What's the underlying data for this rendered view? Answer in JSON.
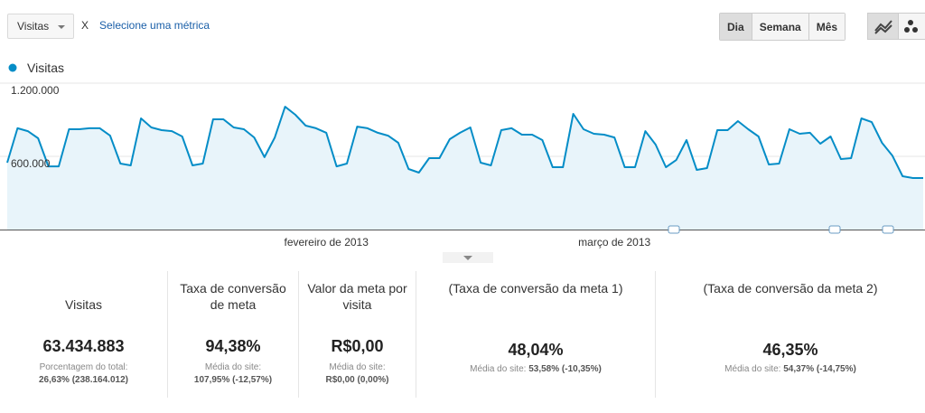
{
  "toolbar": {
    "metric": "Visitas",
    "close": "X",
    "select_metric": "Selecione uma métrica",
    "periods": [
      "Dia",
      "Semana",
      "Mês"
    ]
  },
  "chart_data": {
    "type": "line",
    "categories": [
      null,
      null,
      null,
      null,
      null,
      null,
      null,
      null,
      null,
      null,
      null,
      null,
      null,
      null,
      null,
      null,
      null,
      null,
      null,
      null,
      null,
      null,
      null,
      null,
      null,
      null,
      null,
      null,
      null,
      null,
      null,
      "fevereiro de 2013",
      null,
      null,
      null,
      null,
      null,
      null,
      null,
      null,
      null,
      null,
      null,
      null,
      null,
      null,
      null,
      null,
      null,
      null,
      null,
      null,
      null,
      null,
      null,
      null,
      null,
      null,
      null,
      "março de 2013",
      null,
      null,
      null,
      null,
      null,
      null,
      null,
      null,
      null,
      null,
      null,
      null,
      null,
      null,
      null,
      null,
      null,
      null,
      null,
      null,
      null,
      null,
      null,
      null,
      null,
      null,
      null,
      null,
      null,
      null
    ],
    "series": [
      {
        "name": "Visitas",
        "color": "#058dc7",
        "values": [
          548000,
          830000,
          807000,
          748000,
          518000,
          518000,
          822000,
          822000,
          830000,
          830000,
          770000,
          541000,
          526000,
          911000,
          837000,
          815000,
          807000,
          763000,
          526000,
          541000,
          904000,
          904000,
          837000,
          822000,
          755000,
          593000,
          755000,
          1007000,
          941000,
          852000,
          830000,
          793000,
          518000,
          541000,
          844000,
          830000,
          793000,
          770000,
          711000,
          496000,
          467000,
          585000,
          585000,
          741000,
          793000,
          837000,
          548000,
          526000,
          815000,
          830000,
          778000,
          778000,
          733000,
          511000,
          511000,
          948000,
          822000,
          785000,
          778000,
          755000,
          511000,
          511000,
          807000,
          696000,
          511000,
          570000,
          733000,
          489000,
          504000,
          815000,
          815000,
          889000,
          822000,
          763000,
          533000,
          541000,
          822000,
          785000,
          793000,
          704000,
          763000,
          578000,
          585000,
          911000,
          881000,
          711000,
          607000,
          437000,
          422000,
          422000
        ]
      }
    ],
    "ylim": [
      0,
      1200000
    ],
    "yticks": [
      {
        "value": 600000,
        "label": "600.000"
      },
      {
        "value": 1200000,
        "label": "1.200.000"
      }
    ],
    "grid": true
  },
  "scorecards": [
    {
      "label": "Visitas",
      "value": "63.434.883",
      "note": "Porcentagem do total:",
      "note_value": "26,63%",
      "note_delta": "(238.164.012)"
    },
    {
      "label": "Taxa de conversão de meta",
      "value": "94,38%",
      "note": "Média do site:",
      "note_value": "107,95%",
      "note_delta": "(-12,57%)"
    },
    {
      "label": "Valor da meta por visita",
      "value": "R$0,00",
      "note": "Média do site:",
      "note_value": "R$0,00",
      "note_delta": "(0,00%)"
    },
    {
      "label": "(Taxa de conversão da meta 1)",
      "value": "48,04%",
      "note": "Média do site:",
      "note_value": "53,58%",
      "note_delta": "(-10,35%)"
    },
    {
      "label": "(Taxa de conversão da meta 2)",
      "value": "46,35%",
      "note": "Média do site:",
      "note_value": "54,37%",
      "note_delta": "(-14,75%)"
    }
  ]
}
